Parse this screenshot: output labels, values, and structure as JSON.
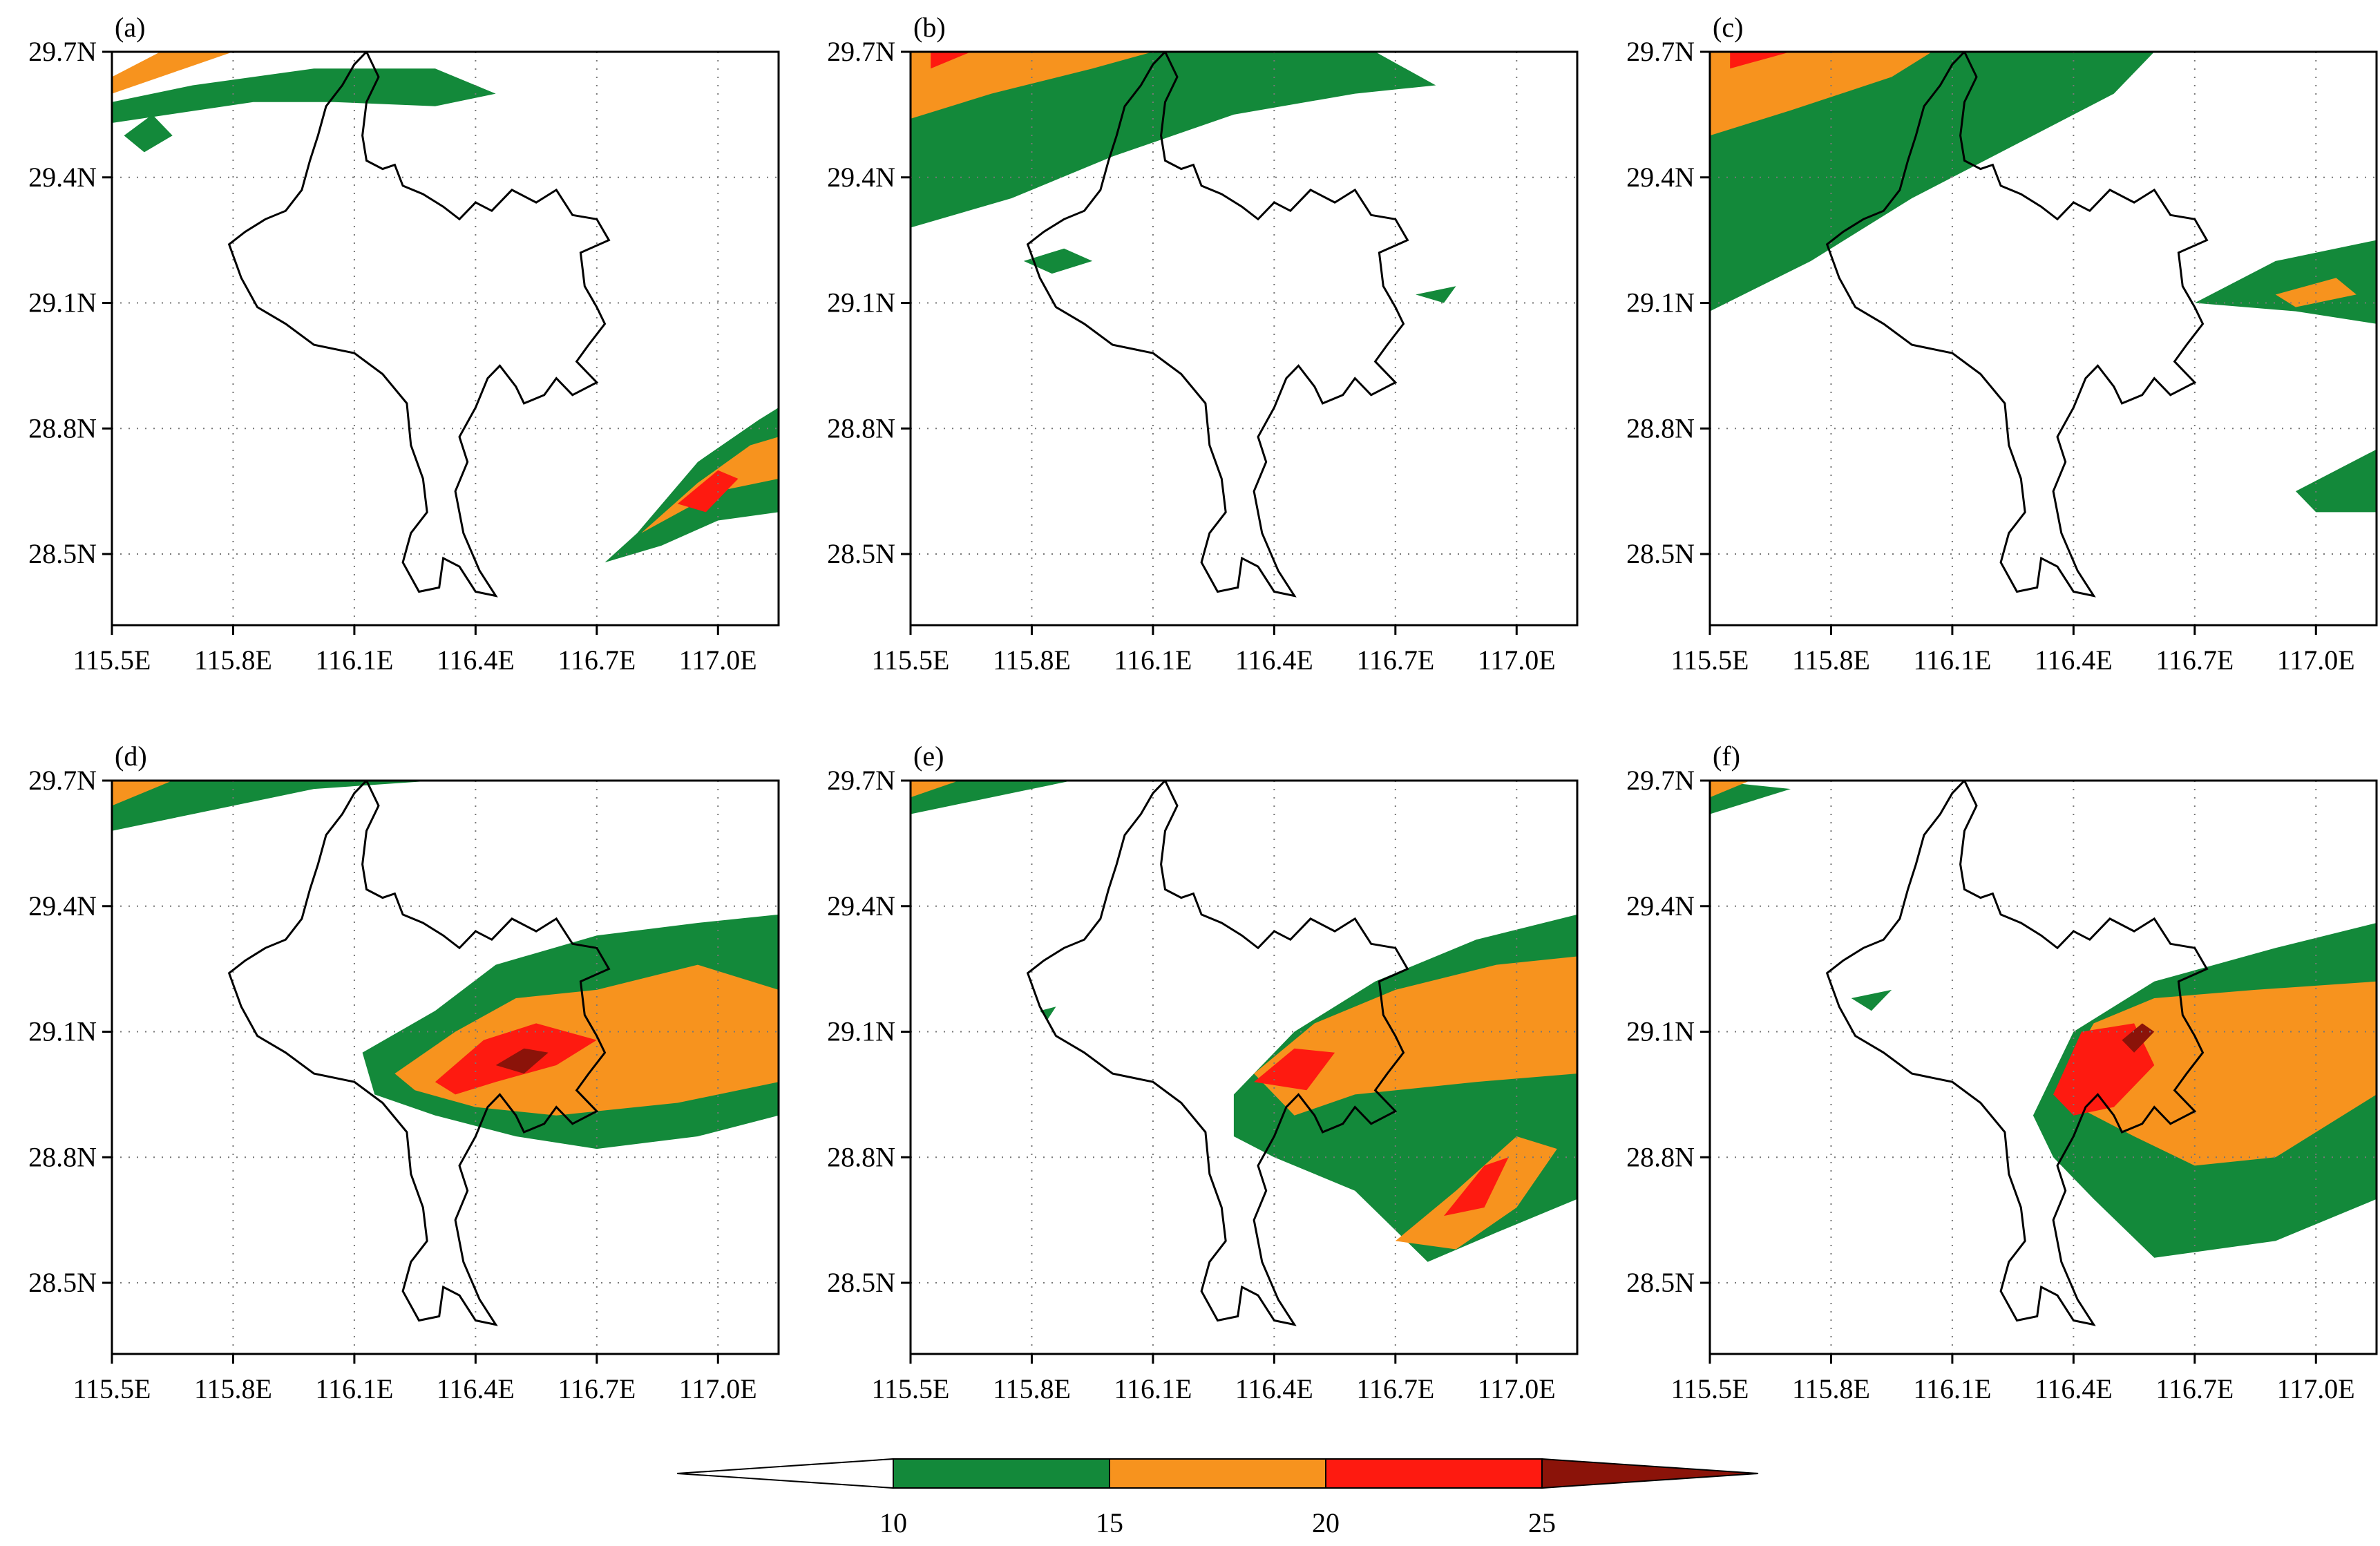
{
  "panels": [
    {
      "label": "(a)"
    },
    {
      "label": "(b)"
    },
    {
      "label": "(c)"
    },
    {
      "label": "(d)"
    },
    {
      "label": "(e)"
    },
    {
      "label": "(f)"
    }
  ],
  "axes": {
    "lon_min": 115.5,
    "lon_max": 117.15,
    "lat_min": 28.33,
    "lat_max": 29.7,
    "lon_ticks": [
      {
        "value": 115.5,
        "label": "115.5E"
      },
      {
        "value": 115.8,
        "label": "115.8E"
      },
      {
        "value": 116.1,
        "label": "116.1E"
      },
      {
        "value": 116.4,
        "label": "116.4E"
      },
      {
        "value": 116.7,
        "label": "116.7E"
      },
      {
        "value": 117.0,
        "label": "117.0E"
      }
    ],
    "lat_ticks": [
      {
        "value": 29.7,
        "label": "29.7N"
      },
      {
        "value": 29.4,
        "label": "29.4N"
      },
      {
        "value": 29.1,
        "label": "29.1N"
      },
      {
        "value": 28.8,
        "label": "28.8N"
      },
      {
        "value": 28.5,
        "label": "28.5N"
      }
    ],
    "grid": "dotted"
  },
  "colorbar": {
    "levels": [
      10,
      15,
      20,
      25
    ],
    "labels": [
      "10",
      "15",
      "20",
      "25"
    ],
    "colors": [
      "#ffffff",
      "#13893a",
      "#f7931e",
      "#fe1a10",
      "#8b1309"
    ]
  },
  "colors": {
    "green": "#13893a",
    "orange": "#f7931e",
    "red": "#fe1a10",
    "darkred": "#8b1309",
    "coast": "#000000"
  },
  "lake_outline": [
    [
      115.79,
      29.24
    ],
    [
      115.83,
      29.27
    ],
    [
      115.88,
      29.3
    ],
    [
      115.93,
      29.32
    ],
    [
      115.97,
      29.37
    ],
    [
      115.99,
      29.44
    ],
    [
      116.01,
      29.5
    ],
    [
      116.03,
      29.57
    ],
    [
      116.07,
      29.62
    ],
    [
      116.1,
      29.67
    ],
    [
      116.13,
      29.7
    ],
    [
      116.16,
      29.64
    ],
    [
      116.13,
      29.58
    ],
    [
      116.12,
      29.5
    ],
    [
      116.13,
      29.44
    ],
    [
      116.17,
      29.42
    ],
    [
      116.2,
      29.43
    ],
    [
      116.22,
      29.38
    ],
    [
      116.27,
      29.36
    ],
    [
      116.32,
      29.33
    ],
    [
      116.36,
      29.3
    ],
    [
      116.4,
      29.34
    ],
    [
      116.44,
      29.32
    ],
    [
      116.49,
      29.37
    ],
    [
      116.55,
      29.34
    ],
    [
      116.6,
      29.37
    ],
    [
      116.64,
      29.31
    ],
    [
      116.7,
      29.3
    ],
    [
      116.73,
      29.25
    ],
    [
      116.66,
      29.22
    ],
    [
      116.67,
      29.14
    ],
    [
      116.7,
      29.09
    ],
    [
      116.72,
      29.05
    ],
    [
      116.68,
      29.0
    ],
    [
      116.65,
      28.96
    ],
    [
      116.7,
      28.91
    ],
    [
      116.64,
      28.88
    ],
    [
      116.6,
      28.92
    ],
    [
      116.57,
      28.88
    ],
    [
      116.52,
      28.86
    ],
    [
      116.5,
      28.9
    ],
    [
      116.46,
      28.95
    ],
    [
      116.43,
      28.92
    ],
    [
      116.4,
      28.85
    ],
    [
      116.36,
      28.78
    ],
    [
      116.38,
      28.72
    ],
    [
      116.35,
      28.65
    ],
    [
      116.37,
      28.55
    ],
    [
      116.41,
      28.46
    ],
    [
      116.45,
      28.4
    ],
    [
      116.4,
      28.41
    ],
    [
      116.36,
      28.47
    ],
    [
      116.32,
      28.49
    ],
    [
      116.31,
      28.42
    ],
    [
      116.26,
      28.41
    ],
    [
      116.22,
      28.48
    ],
    [
      116.24,
      28.55
    ],
    [
      116.28,
      28.6
    ],
    [
      116.27,
      28.68
    ],
    [
      116.24,
      28.76
    ],
    [
      116.23,
      28.86
    ],
    [
      116.17,
      28.93
    ],
    [
      116.1,
      28.98
    ],
    [
      116.0,
      29.0
    ],
    [
      115.93,
      29.05
    ],
    [
      115.86,
      29.09
    ],
    [
      115.82,
      29.16
    ],
    [
      115.79,
      29.24
    ]
  ],
  "fields": [
    {
      "green": [
        [
          [
            115.5,
            29.58
          ],
          [
            115.7,
            29.62
          ],
          [
            116.0,
            29.66
          ],
          [
            116.3,
            29.66
          ],
          [
            116.45,
            29.6
          ],
          [
            116.3,
            29.57
          ],
          [
            116.05,
            29.58
          ],
          [
            115.85,
            29.58
          ],
          [
            115.5,
            29.53
          ]
        ],
        [
          [
            115.53,
            29.5
          ],
          [
            115.6,
            29.55
          ],
          [
            115.65,
            29.5
          ],
          [
            115.58,
            29.46
          ]
        ],
        [
          [
            116.72,
            28.48
          ],
          [
            116.8,
            28.55
          ],
          [
            116.95,
            28.72
          ],
          [
            117.1,
            28.82
          ],
          [
            117.15,
            28.85
          ],
          [
            117.15,
            28.6
          ],
          [
            117.0,
            28.58
          ],
          [
            116.86,
            28.52
          ]
        ]
      ],
      "orange": [
        [
          [
            115.5,
            29.64
          ],
          [
            115.62,
            29.7
          ],
          [
            115.8,
            29.7
          ],
          [
            115.68,
            29.66
          ],
          [
            115.5,
            29.6
          ]
        ],
        [
          [
            116.81,
            28.55
          ],
          [
            116.95,
            28.67
          ],
          [
            117.08,
            28.76
          ],
          [
            117.15,
            28.78
          ],
          [
            117.15,
            28.68
          ],
          [
            117.0,
            28.65
          ]
        ]
      ],
      "red": [
        [
          [
            116.9,
            28.62
          ],
          [
            117.0,
            28.7
          ],
          [
            117.05,
            28.68
          ],
          [
            116.97,
            28.6
          ]
        ]
      ],
      "darkred": []
    },
    {
      "green": [
        [
          [
            115.5,
            29.28
          ],
          [
            115.75,
            29.35
          ],
          [
            116.0,
            29.45
          ],
          [
            116.3,
            29.55
          ],
          [
            116.6,
            29.6
          ],
          [
            116.8,
            29.62
          ],
          [
            116.65,
            29.7
          ],
          [
            115.5,
            29.7
          ]
        ],
        [
          [
            115.78,
            29.2
          ],
          [
            115.88,
            29.23
          ],
          [
            115.95,
            29.2
          ],
          [
            115.85,
            29.17
          ]
        ],
        [
          [
            116.75,
            29.12
          ],
          [
            116.85,
            29.14
          ],
          [
            116.82,
            29.1
          ]
        ]
      ],
      "orange": [
        [
          [
            115.5,
            29.54
          ],
          [
            115.7,
            29.6
          ],
          [
            115.95,
            29.66
          ],
          [
            116.1,
            29.7
          ],
          [
            115.5,
            29.7
          ]
        ]
      ],
      "red": [
        [
          [
            115.55,
            29.66
          ],
          [
            115.65,
            29.7
          ],
          [
            115.55,
            29.7
          ]
        ]
      ],
      "darkred": []
    },
    {
      "green": [
        [
          [
            115.5,
            29.08
          ],
          [
            115.75,
            29.2
          ],
          [
            116.0,
            29.35
          ],
          [
            116.3,
            29.5
          ],
          [
            116.5,
            29.6
          ],
          [
            116.6,
            29.7
          ],
          [
            115.5,
            29.7
          ]
        ],
        [
          [
            116.7,
            29.1
          ],
          [
            116.9,
            29.2
          ],
          [
            117.15,
            29.25
          ],
          [
            117.15,
            29.05
          ],
          [
            116.95,
            29.08
          ]
        ],
        [
          [
            116.95,
            28.65
          ],
          [
            117.15,
            28.75
          ],
          [
            117.15,
            28.6
          ],
          [
            117.0,
            28.6
          ]
        ]
      ],
      "orange": [
        [
          [
            115.5,
            29.5
          ],
          [
            115.7,
            29.56
          ],
          [
            115.95,
            29.64
          ],
          [
            116.05,
            29.7
          ],
          [
            115.5,
            29.7
          ]
        ],
        [
          [
            116.9,
            29.12
          ],
          [
            117.05,
            29.16
          ],
          [
            117.1,
            29.12
          ],
          [
            116.95,
            29.09
          ]
        ]
      ],
      "red": [
        [
          [
            115.55,
            29.66
          ],
          [
            115.7,
            29.7
          ],
          [
            115.55,
            29.7
          ]
        ]
      ],
      "darkred": []
    },
    {
      "green": [
        [
          [
            115.5,
            29.58
          ],
          [
            115.7,
            29.62
          ],
          [
            116.0,
            29.68
          ],
          [
            116.3,
            29.7
          ],
          [
            115.5,
            29.7
          ]
        ],
        [
          [
            116.12,
            29.05
          ],
          [
            116.3,
            29.15
          ],
          [
            116.45,
            29.26
          ],
          [
            116.7,
            29.33
          ],
          [
            116.95,
            29.36
          ],
          [
            117.15,
            29.38
          ],
          [
            117.15,
            28.9
          ],
          [
            116.95,
            28.85
          ],
          [
            116.7,
            28.82
          ],
          [
            116.5,
            28.85
          ],
          [
            116.3,
            28.9
          ],
          [
            116.15,
            28.95
          ]
        ]
      ],
      "orange": [
        [
          [
            115.5,
            29.64
          ],
          [
            115.65,
            29.7
          ],
          [
            115.5,
            29.7
          ]
        ],
        [
          [
            116.2,
            29.0
          ],
          [
            116.35,
            29.1
          ],
          [
            116.5,
            29.18
          ],
          [
            116.7,
            29.2
          ],
          [
            116.95,
            29.26
          ],
          [
            117.15,
            29.2
          ],
          [
            117.15,
            28.98
          ],
          [
            116.9,
            28.93
          ],
          [
            116.6,
            28.9
          ],
          [
            116.4,
            28.92
          ],
          [
            116.25,
            28.96
          ]
        ]
      ],
      "red": [
        [
          [
            116.3,
            28.98
          ],
          [
            116.42,
            29.08
          ],
          [
            116.55,
            29.12
          ],
          [
            116.7,
            29.08
          ],
          [
            116.6,
            29.02
          ],
          [
            116.45,
            28.98
          ],
          [
            116.35,
            28.95
          ]
        ]
      ],
      "darkred": [
        [
          [
            116.45,
            29.02
          ],
          [
            116.52,
            29.06
          ],
          [
            116.58,
            29.05
          ],
          [
            116.52,
            29.0
          ]
        ]
      ]
    },
    {
      "green": [
        [
          [
            115.5,
            29.62
          ],
          [
            115.7,
            29.66
          ],
          [
            115.9,
            29.7
          ],
          [
            115.5,
            29.7
          ]
        ],
        [
          [
            116.3,
            28.95
          ],
          [
            116.45,
            29.1
          ],
          [
            116.65,
            29.22
          ],
          [
            116.9,
            29.32
          ],
          [
            117.15,
            29.38
          ],
          [
            117.15,
            28.7
          ],
          [
            116.95,
            28.62
          ],
          [
            116.78,
            28.55
          ],
          [
            116.6,
            28.72
          ],
          [
            116.4,
            28.8
          ],
          [
            116.3,
            28.85
          ]
        ],
        [
          [
            115.82,
            29.15
          ],
          [
            115.86,
            29.16
          ],
          [
            115.84,
            29.13
          ]
        ]
      ],
      "orange": [
        [
          [
            115.5,
            29.66
          ],
          [
            115.62,
            29.7
          ],
          [
            115.5,
            29.7
          ]
        ],
        [
          [
            116.35,
            29.0
          ],
          [
            116.5,
            29.12
          ],
          [
            116.7,
            29.2
          ],
          [
            116.95,
            29.26
          ],
          [
            117.15,
            29.28
          ],
          [
            117.15,
            29.0
          ],
          [
            116.9,
            28.98
          ],
          [
            116.6,
            28.95
          ],
          [
            116.45,
            28.9
          ]
        ],
        [
          [
            116.7,
            28.6
          ],
          [
            116.85,
            28.72
          ],
          [
            117.0,
            28.85
          ],
          [
            117.1,
            28.82
          ],
          [
            117.0,
            28.68
          ],
          [
            116.85,
            28.58
          ]
        ]
      ],
      "red": [
        [
          [
            116.35,
            28.98
          ],
          [
            116.45,
            29.06
          ],
          [
            116.55,
            29.05
          ],
          [
            116.48,
            28.96
          ]
        ],
        [
          [
            116.82,
            28.66
          ],
          [
            116.92,
            28.78
          ],
          [
            116.98,
            28.8
          ],
          [
            116.92,
            28.68
          ]
        ]
      ],
      "darkred": []
    },
    {
      "green": [
        [
          [
            115.5,
            29.62
          ],
          [
            115.7,
            29.68
          ],
          [
            115.5,
            29.7
          ]
        ],
        [
          [
            116.3,
            28.9
          ],
          [
            116.4,
            29.1
          ],
          [
            116.6,
            29.22
          ],
          [
            116.9,
            29.3
          ],
          [
            117.15,
            29.36
          ],
          [
            117.15,
            28.7
          ],
          [
            116.9,
            28.6
          ],
          [
            116.6,
            28.56
          ],
          [
            116.45,
            28.7
          ],
          [
            116.35,
            28.8
          ]
        ],
        [
          [
            115.85,
            29.18
          ],
          [
            115.95,
            29.2
          ],
          [
            115.9,
            29.15
          ]
        ]
      ],
      "orange": [
        [
          [
            115.5,
            29.66
          ],
          [
            115.6,
            29.7
          ],
          [
            115.5,
            29.7
          ]
        ],
        [
          [
            116.35,
            28.95
          ],
          [
            116.45,
            29.12
          ],
          [
            116.6,
            29.18
          ],
          [
            116.85,
            29.2
          ],
          [
            117.15,
            29.22
          ],
          [
            117.15,
            28.95
          ],
          [
            116.9,
            28.8
          ],
          [
            116.7,
            28.78
          ],
          [
            116.55,
            28.85
          ]
        ]
      ],
      "red": [
        [
          [
            116.35,
            28.95
          ],
          [
            116.42,
            29.1
          ],
          [
            116.55,
            29.12
          ],
          [
            116.6,
            29.02
          ],
          [
            116.5,
            28.92
          ],
          [
            116.4,
            28.9
          ]
        ]
      ],
      "darkred": [
        [
          [
            116.52,
            29.08
          ],
          [
            116.57,
            29.12
          ],
          [
            116.6,
            29.1
          ],
          [
            116.55,
            29.05
          ]
        ]
      ]
    }
  ]
}
